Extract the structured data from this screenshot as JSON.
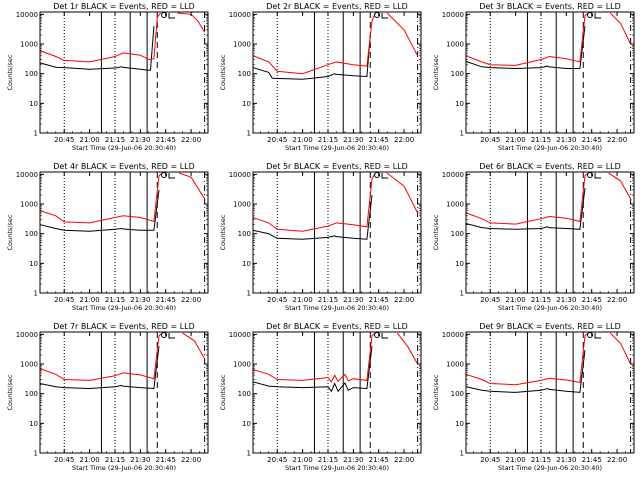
{
  "chart_data": [
    {
      "id": "1r",
      "title": "Det 1r BLACK = Events, RED = LLD",
      "type": "line",
      "ylabel": "Counts/sec",
      "xlabel": "Start Time (29-Jun-06 20:30:40)",
      "x_ticks": [
        "20:45",
        "21:00",
        "21:15",
        "21:30",
        "21:45",
        "22:00"
      ],
      "y_ticks": [
        "1",
        "10",
        "100",
        "1000",
        "10000"
      ],
      "y_scale": "log",
      "ylim": [
        1,
        12000
      ],
      "xlim": [
        "20:30:40",
        "22:10"
      ],
      "circle_marker": "21:44",
      "series": [
        {
          "color": "#000000",
          "x": [
            "20:30:40",
            "20:40",
            "20:45",
            "21:00",
            "21:15",
            "21:19",
            "21:19:30",
            "21:30",
            "21:35",
            "21:36",
            "21:38"
          ],
          "values": [
            230,
            165,
            160,
            140,
            155,
            170,
            165,
            140,
            130,
            130,
            4000
          ]
        },
        {
          "color": "#ff0000",
          "x": [
            "20:30:40",
            "20:40",
            "20:45",
            "21:00",
            "21:15",
            "21:20",
            "21:30",
            "21:35",
            "21:38",
            "21:40",
            "21:42"
          ],
          "values": [
            600,
            380,
            280,
            250,
            380,
            500,
            420,
            300,
            320,
            8000,
            11000
          ]
        },
        {
          "color": "#ff0000",
          "x": [
            "21:52",
            "22:00",
            "22:04",
            "22:08"
          ],
          "values": [
            11000,
            10000,
            6000,
            2500
          ]
        }
      ]
    },
    {
      "id": "2r",
      "title": "Det 2r BLACK = Events, RED = LLD",
      "type": "line",
      "ylabel": "Counts/sec",
      "xlabel": "Start Time (29-Jun-06 20:30:40)",
      "x_ticks": [
        "20:45",
        "21:00",
        "21:15",
        "21:30",
        "21:45",
        "22:00"
      ],
      "y_ticks": [
        "1",
        "10",
        "100",
        "1000",
        "10000"
      ],
      "y_scale": "log",
      "ylim": [
        1,
        12000
      ],
      "xlim": [
        "20:30:40",
        "22:10"
      ],
      "circle_marker": "21:44",
      "series": [
        {
          "color": "#000000",
          "x": [
            "20:30:40",
            "20:40",
            "20:42",
            "21:00",
            "21:15",
            "21:19",
            "21:19:30",
            "21:30",
            "21:38",
            "21:40"
          ],
          "values": [
            160,
            110,
            70,
            65,
            80,
            100,
            95,
            85,
            80,
            2000
          ]
        },
        {
          "color": "#ff0000",
          "x": [
            "20:30:40",
            "20:40",
            "20:45",
            "21:00",
            "21:15",
            "21:20",
            "21:30",
            "21:38",
            "21:41",
            "21:43"
          ],
          "values": [
            400,
            250,
            120,
            100,
            200,
            250,
            200,
            180,
            6000,
            11000
          ]
        },
        {
          "color": "#ff0000",
          "x": [
            "21:50",
            "22:00",
            "22:08"
          ],
          "values": [
            11000,
            3000,
            400
          ]
        }
      ]
    },
    {
      "id": "3r",
      "title": "Det 3r BLACK = Events, RED = LLD",
      "type": "line",
      "ylabel": "Counts/sec",
      "xlabel": "Start Time (29-Jun-06 20:30:40)",
      "x_ticks": [
        "20:45",
        "21:00",
        "21:15",
        "21:30",
        "21:45",
        "22:00"
      ],
      "y_ticks": [
        "1",
        "10",
        "100",
        "1000",
        "10000"
      ],
      "y_scale": "log",
      "ylim": [
        1,
        12000
      ],
      "xlim": [
        "20:30:40",
        "22:10"
      ],
      "circle_marker": "21:44",
      "series": [
        {
          "color": "#000000",
          "x": [
            "20:30:40",
            "20:40",
            "20:45",
            "21:00",
            "21:15",
            "21:19",
            "21:19:30",
            "21:30",
            "21:38",
            "21:41"
          ],
          "values": [
            260,
            170,
            160,
            150,
            160,
            180,
            170,
            150,
            150,
            4000
          ]
        },
        {
          "color": "#ff0000",
          "x": [
            "20:30:40",
            "20:40",
            "20:45",
            "21:00",
            "21:15",
            "21:20",
            "21:30",
            "21:38",
            "21:41",
            "21:43"
          ],
          "values": [
            400,
            250,
            200,
            190,
            300,
            380,
            320,
            250,
            9000,
            11000
          ]
        },
        {
          "color": "#ff0000",
          "x": [
            "21:56",
            "22:02",
            "22:08"
          ],
          "values": [
            11000,
            5000,
            1000
          ]
        }
      ]
    },
    {
      "id": "4r",
      "title": "Det 4r BLACK = Events, RED = LLD",
      "type": "line",
      "ylabel": "Counts/sec",
      "xlabel": "Start Time (29-Jun-06 20:30:40)",
      "x_ticks": [
        "20:45",
        "21:00",
        "21:15",
        "21:30",
        "21:45",
        "22:00"
      ],
      "y_ticks": [
        "1",
        "10",
        "100",
        "1000",
        "10000"
      ],
      "y_scale": "log",
      "ylim": [
        1,
        12000
      ],
      "xlim": [
        "20:30:40",
        "22:10"
      ],
      "circle_marker": "21:44",
      "series": [
        {
          "color": "#000000",
          "x": [
            "20:30:40",
            "20:40",
            "20:45",
            "21:00",
            "21:15",
            "21:19",
            "21:19:30",
            "21:30",
            "21:38",
            "21:41"
          ],
          "values": [
            200,
            150,
            130,
            120,
            140,
            150,
            145,
            130,
            130,
            3000
          ]
        },
        {
          "color": "#ff0000",
          "x": [
            "20:30:40",
            "20:40",
            "20:45",
            "21:00",
            "21:15",
            "21:20",
            "21:30",
            "21:38",
            "21:41",
            "21:43"
          ],
          "values": [
            600,
            400,
            250,
            230,
            350,
            400,
            350,
            260,
            9000,
            11000
          ]
        },
        {
          "color": "#ff0000",
          "x": [
            "21:53",
            "22:00",
            "22:08"
          ],
          "values": [
            11000,
            8000,
            1500
          ]
        }
      ]
    },
    {
      "id": "5r",
      "title": "Det 5r BLACK = Events, RED = LLD",
      "type": "line",
      "ylabel": "Counts/sec",
      "xlabel": "Start Time (29-Jun-06 20:30:40)",
      "x_ticks": [
        "20:45",
        "21:00",
        "21:15",
        "21:30",
        "21:45",
        "22:00"
      ],
      "y_ticks": [
        "1",
        "10",
        "100",
        "1000",
        "10000"
      ],
      "y_scale": "log",
      "ylim": [
        1,
        12000
      ],
      "xlim": [
        "20:30:40",
        "22:10"
      ],
      "circle_marker": "21:44",
      "series": [
        {
          "color": "#000000",
          "x": [
            "20:30:40",
            "20:40",
            "20:45",
            "21:00",
            "21:15",
            "21:19",
            "21:19:30",
            "21:30",
            "21:38",
            "21:41"
          ],
          "values": [
            130,
            100,
            70,
            65,
            75,
            85,
            80,
            70,
            65,
            2000
          ]
        },
        {
          "color": "#ff0000",
          "x": [
            "20:30:40",
            "20:40",
            "20:45",
            "21:00",
            "21:15",
            "21:20",
            "21:30",
            "21:38",
            "21:41",
            "21:43"
          ],
          "values": [
            350,
            230,
            140,
            120,
            180,
            230,
            200,
            170,
            7000,
            11000
          ]
        },
        {
          "color": "#ff0000",
          "x": [
            "21:50",
            "22:00",
            "22:08"
          ],
          "values": [
            11000,
            4000,
            500
          ]
        }
      ]
    },
    {
      "id": "6r",
      "title": "Det 6r BLACK = Events, RED = LLD",
      "type": "line",
      "ylabel": "Counts/sec",
      "xlabel": "Start Time (29-Jun-06 20:30:40)",
      "x_ticks": [
        "20:45",
        "21:00",
        "21:15",
        "21:30",
        "21:45",
        "22:00"
      ],
      "y_ticks": [
        "1",
        "10",
        "100",
        "1000",
        "10000"
      ],
      "y_scale": "log",
      "ylim": [
        1,
        12000
      ],
      "xlim": [
        "20:30:40",
        "22:10"
      ],
      "circle_marker": "21:44",
      "series": [
        {
          "color": "#000000",
          "x": [
            "20:30:40",
            "20:40",
            "20:45",
            "21:00",
            "21:15",
            "21:19",
            "21:19:30",
            "21:30",
            "21:38",
            "21:41"
          ],
          "values": [
            220,
            160,
            150,
            140,
            150,
            170,
            160,
            150,
            140,
            3500
          ]
        },
        {
          "color": "#ff0000",
          "x": [
            "20:30:40",
            "20:40",
            "20:45",
            "21:00",
            "21:15",
            "21:20",
            "21:30",
            "21:38",
            "21:41",
            "21:43"
          ],
          "values": [
            500,
            320,
            230,
            210,
            320,
            380,
            330,
            260,
            9000,
            11000
          ]
        },
        {
          "color": "#ff0000",
          "x": [
            "21:55",
            "22:02",
            "22:08"
          ],
          "values": [
            11000,
            6000,
            1500
          ]
        }
      ]
    },
    {
      "id": "7r",
      "title": "Det 7r BLACK = Events, RED = LLD",
      "type": "line",
      "ylabel": "Counts/sec",
      "xlabel": "Start Time (29-Jun-06 20:30:40)",
      "x_ticks": [
        "20:45",
        "21:00",
        "21:15",
        "21:30",
        "21:45",
        "22:00"
      ],
      "y_ticks": [
        "1",
        "10",
        "100",
        "1000",
        "10000"
      ],
      "y_scale": "log",
      "ylim": [
        1,
        12000
      ],
      "xlim": [
        "20:30:40",
        "22:10"
      ],
      "circle_marker": "21:44",
      "series": [
        {
          "color": "#000000",
          "x": [
            "20:30:40",
            "20:40",
            "20:45",
            "21:00",
            "21:15",
            "21:19",
            "21:19:30",
            "21:30",
            "21:38",
            "21:41"
          ],
          "values": [
            220,
            170,
            160,
            150,
            170,
            190,
            180,
            160,
            150,
            4000
          ]
        },
        {
          "color": "#ff0000",
          "x": [
            "20:30:40",
            "20:40",
            "20:45",
            "21:00",
            "21:15",
            "21:20",
            "21:30",
            "21:38",
            "21:41",
            "21:43"
          ],
          "values": [
            700,
            450,
            300,
            280,
            400,
            500,
            430,
            320,
            9000,
            11000
          ]
        },
        {
          "color": "#ff0000",
          "x": [
            "21:55",
            "22:02",
            "22:08"
          ],
          "values": [
            11000,
            6000,
            1500
          ]
        }
      ]
    },
    {
      "id": "8r",
      "title": "Det 8r BLACK = Events, RED = LLD",
      "type": "line",
      "ylabel": "Counts/sec",
      "xlabel": "Start Time (29-Jun-06 20:30:40)",
      "x_ticks": [
        "20:45",
        "21:00",
        "21:15",
        "21:30",
        "21:45",
        "22:00"
      ],
      "y_ticks": [
        "1",
        "10",
        "100",
        "1000",
        "10000"
      ],
      "y_scale": "log",
      "ylim": [
        1,
        12000
      ],
      "xlim": [
        "20:30:40",
        "22:10"
      ],
      "circle_marker": "21:44",
      "series": [
        {
          "color": "#000000",
          "x": [
            "20:30:40",
            "20:40",
            "20:45",
            "21:00",
            "21:15",
            "21:17",
            "21:19",
            "21:21",
            "21:25",
            "21:27",
            "21:30",
            "21:38",
            "21:41"
          ],
          "values": [
            250,
            180,
            170,
            160,
            170,
            120,
            220,
            120,
            230,
            130,
            160,
            150,
            4000
          ]
        },
        {
          "color": "#ff0000",
          "x": [
            "20:30:40",
            "20:40",
            "20:45",
            "21:00",
            "21:15",
            "21:17",
            "21:19",
            "21:21",
            "21:25",
            "21:27",
            "21:30",
            "21:38",
            "21:41",
            "21:43"
          ],
          "values": [
            650,
            450,
            300,
            280,
            350,
            250,
            420,
            260,
            450,
            270,
            320,
            280,
            9000,
            11000
          ]
        },
        {
          "color": "#ff0000",
          "x": [
            "21:56",
            "22:02",
            "22:08"
          ],
          "values": [
            11000,
            4000,
            1000
          ]
        }
      ]
    },
    {
      "id": "9r",
      "title": "Det 9r BLACK = Events, RED = LLD",
      "type": "line",
      "ylabel": "Counts/sec",
      "xlabel": "Start Time (29-Jun-06 20:30:40)",
      "x_ticks": [
        "20:45",
        "21:00",
        "21:15",
        "21:30",
        "21:45",
        "22:00"
      ],
      "y_ticks": [
        "1",
        "10",
        "100",
        "1000",
        "10000"
      ],
      "y_scale": "log",
      "ylim": [
        1,
        12000
      ],
      "xlim": [
        "20:30:40",
        "22:10"
      ],
      "circle_marker": "21:44",
      "series": [
        {
          "color": "#000000",
          "x": [
            "20:30:40",
            "20:40",
            "20:45",
            "21:00",
            "21:15",
            "21:19",
            "21:19:30",
            "21:30",
            "21:38",
            "21:41"
          ],
          "values": [
            170,
            130,
            120,
            110,
            130,
            150,
            140,
            120,
            110,
            3000
          ]
        },
        {
          "color": "#ff0000",
          "x": [
            "20:30:40",
            "20:40",
            "20:45",
            "21:00",
            "21:15",
            "21:20",
            "21:30",
            "21:38",
            "21:41",
            "21:43"
          ],
          "values": [
            450,
            300,
            220,
            200,
            280,
            330,
            290,
            240,
            9000,
            11000
          ]
        },
        {
          "color": "#ff0000",
          "x": [
            "21:56",
            "22:02",
            "22:08"
          ],
          "values": [
            11000,
            5000,
            1000
          ]
        }
      ]
    }
  ]
}
